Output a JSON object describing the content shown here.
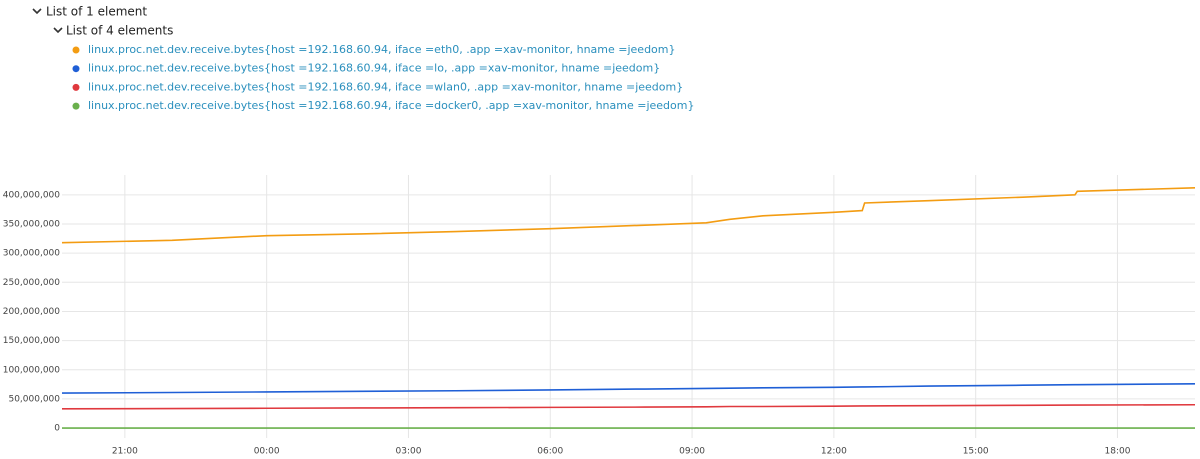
{
  "tree": {
    "title": "List of 1 element",
    "subtitle": "List of 4 elements"
  },
  "chart_data": {
    "type": "line",
    "x": [
      -4.33,
      -2,
      0,
      2,
      4,
      6,
      8,
      9.3,
      9.8,
      10.5,
      12,
      12.6,
      12.65,
      14,
      16,
      17.1,
      17.15,
      19.64
    ],
    "series": [
      {
        "name": "linux.proc.net.dev.receive.bytes{host =192.168.60.94, iface =eth0, .app =xav-monitor, hname =jeedom}",
        "color": "#f39c12",
        "values": [
          318000000,
          322000000,
          330000000,
          333000000,
          337000000,
          342000000,
          348000000,
          352000000,
          358000000,
          364000000,
          370000000,
          373000000,
          386000000,
          390000000,
          396000000,
          400000000,
          406000000,
          412000000
        ]
      },
      {
        "name": "linux.proc.net.dev.receive.bytes{host =192.168.60.94, iface =lo, .app =xav-monitor, hname =jeedom}",
        "color": "#1f5fd6",
        "values": [
          60000000,
          61000000,
          62000000,
          63000000,
          64000000,
          65500000,
          67000000,
          68000000,
          68500000,
          69000000,
          70000000,
          70500000,
          70500000,
          72000000,
          73500000,
          74500000,
          74500000,
          76000000
        ]
      },
      {
        "name": "linux.proc.net.dev.receive.bytes{host =192.168.60.94, iface =wlan0, .app =xav-monitor, hname =jeedom}",
        "color": "#e0393e",
        "values": [
          33000000,
          33500000,
          34000000,
          34500000,
          35000000,
          35500000,
          36000000,
          36500000,
          37000000,
          37000000,
          37500000,
          38000000,
          38000000,
          38500000,
          39000000,
          39500000,
          39500000,
          40000000
        ]
      },
      {
        "name": "linux.proc.net.dev.receive.bytes{host =192.168.60.94, iface =docker0, .app =xav-monitor, hname =jeedom}",
        "color": "#6ab04c",
        "values": [
          0,
          0,
          0,
          0,
          0,
          0,
          0,
          0,
          0,
          0,
          0,
          0,
          0,
          0,
          0,
          0,
          0,
          0
        ]
      }
    ],
    "xlim": [
      -4.33,
      19.64
    ],
    "xticks": [
      {
        "value": -3,
        "label": "21:00"
      },
      {
        "value": 0,
        "label": "00:00"
      },
      {
        "value": 3,
        "label": "03:00"
      },
      {
        "value": 6,
        "label": "06:00"
      },
      {
        "value": 9,
        "label": "09:00"
      },
      {
        "value": 12,
        "label": "12:00"
      },
      {
        "value": 15,
        "label": "15:00"
      },
      {
        "value": 18,
        "label": "18:00"
      }
    ],
    "ylim": [
      -17000000,
      434000000
    ],
    "yticks": [
      0,
      {
        "value": 50000000,
        "label": "50,000,000"
      },
      {
        "value": 100000000,
        "label": "100,000,000"
      },
      {
        "value": 150000000,
        "label": "150,000,000"
      },
      {
        "value": 200000000,
        "label": "200,000,000"
      },
      {
        "value": 250000000,
        "label": "250,000,000"
      },
      {
        "value": 300000000,
        "label": "300,000,000"
      },
      {
        "value": 350000000,
        "label": "350,000,000"
      },
      {
        "value": 400000000,
        "label": "400,000,000"
      }
    ],
    "grid": true
  }
}
